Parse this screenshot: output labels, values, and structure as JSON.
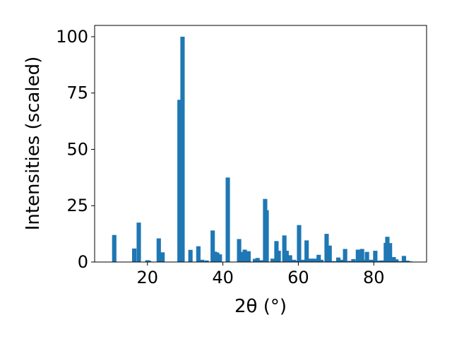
{
  "chart_data": {
    "type": "bar",
    "title": "",
    "xlabel": "2θ (°)",
    "ylabel": "Intensities (scaled)",
    "xlim": [
      6,
      94
    ],
    "ylim": [
      0,
      105
    ],
    "xticks": [
      "20",
      "40",
      "60",
      "80"
    ],
    "yticks": [
      "0",
      "25",
      "50",
      "75",
      "100"
    ],
    "grid": false,
    "bar_color": "#1f77b4",
    "x": [
      11.2,
      16.5,
      17.7,
      20.0,
      20.4,
      23.0,
      24.0,
      28.5,
      29.3,
      31.4,
      33.5,
      34.5,
      35.7,
      37.3,
      37.9,
      38.5,
      39.2,
      41.3,
      44.3,
      45.0,
      45.8,
      46.8,
      48.5,
      49.2,
      50.3,
      51.2,
      51.6,
      53.2,
      54.2,
      54.8,
      56.3,
      56.9,
      57.8,
      58.8,
      59.5,
      60.2,
      61.3,
      62.2,
      63.2,
      64.3,
      65.4,
      66.1,
      67.5,
      68.3,
      69.4,
      70.6,
      71.6,
      72.4,
      73.6,
      74.6,
      75.8,
      76.9,
      77.5,
      78.2,
      79.3,
      80.4,
      81.3,
      82.2,
      83.2,
      83.6,
      84.3,
      85.3,
      86.0,
      87.1,
      88.0,
      88.9,
      89.6
    ],
    "values": [
      12,
      6,
      17.5,
      0.8,
      0.6,
      10.5,
      4.3,
      72,
      100,
      5.4,
      7,
      1,
      0.7,
      14,
      4.6,
      4.2,
      3.4,
      37.5,
      10.2,
      4.5,
      5.5,
      4.8,
      1.4,
      1.8,
      0.8,
      28,
      23,
      1.5,
      9.3,
      5,
      11.8,
      5,
      3,
      1,
      0.6,
      16.4,
      1,
      9.6,
      1.5,
      1.5,
      3.2,
      1,
      12.5,
      7.3,
      0.4,
      2,
      1,
      5.8,
      0.5,
      1.3,
      5.5,
      5.8,
      1,
      4.5,
      1,
      5,
      0.6,
      0.7,
      8.5,
      11.2,
      8.4,
      2.2,
      1.2,
      0.4,
      2.7,
      0.6,
      0.3
    ]
  }
}
